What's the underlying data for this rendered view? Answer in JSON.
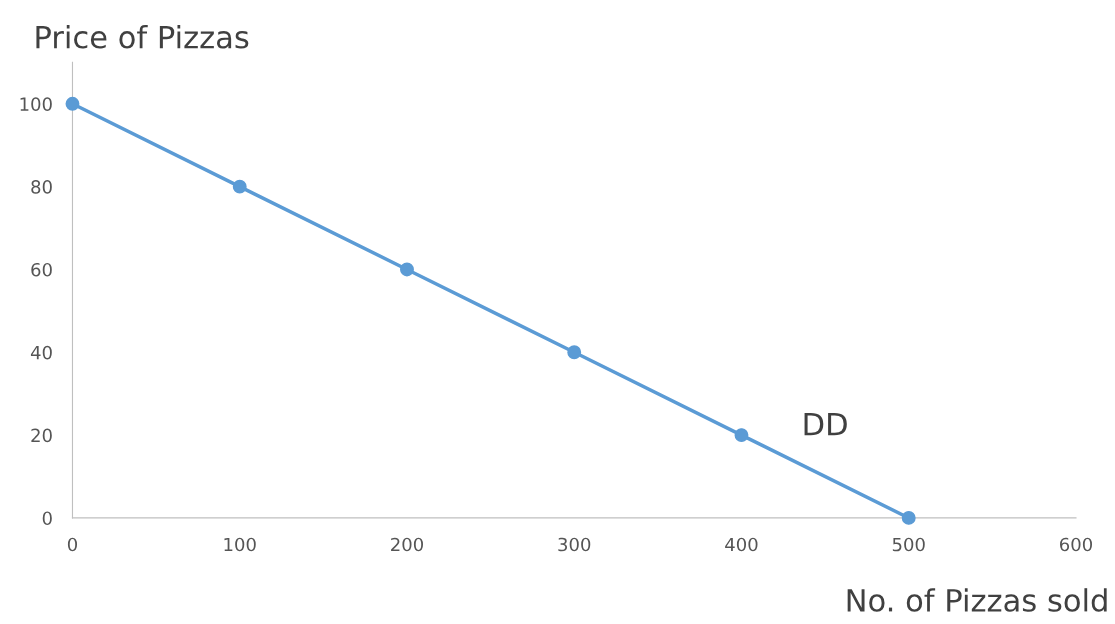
{
  "chart_data": {
    "type": "line",
    "xlabel": "No. of Pizzas sold",
    "ylabel": "Price of Pizzas",
    "x": [
      0,
      100,
      200,
      300,
      400,
      500
    ],
    "series": [
      {
        "color": "#5b9bd5",
        "values": [
          100,
          80,
          60,
          40,
          20,
          0
        ]
      }
    ],
    "marker": "circle",
    "line_style": "solid",
    "xlim": [
      0,
      600
    ],
    "xticks": [
      0,
      100,
      200,
      300,
      400,
      500,
      600
    ],
    "ylim": [
      0,
      110
    ],
    "yticks": [
      0,
      20,
      40,
      60,
      80,
      100
    ],
    "grid": false,
    "annotations": [
      "DD"
    ]
  }
}
